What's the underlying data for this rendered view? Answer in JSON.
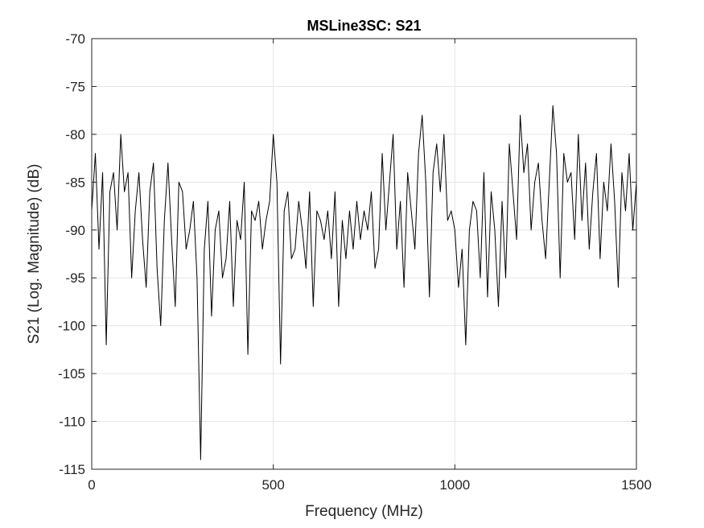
{
  "chart_data": {
    "type": "line",
    "title": "MSLine3SC: S21",
    "xlabel": "Frequency (MHz)",
    "ylabel": "S21 (Log. Magnitude) (dB)",
    "xlim": [
      0,
      1500
    ],
    "ylim": [
      -115,
      -70
    ],
    "xticks": [
      0,
      500,
      1000,
      1500
    ],
    "yticks": [
      -70,
      -75,
      -80,
      -85,
      -90,
      -95,
      -100,
      -105,
      -110,
      -115
    ],
    "grid": true,
    "legend": "none",
    "colors": {
      "line": "#000000",
      "grid": "#e6e6e6",
      "axes": "#262626"
    },
    "series": [
      {
        "x": [
          0,
          10,
          20,
          30,
          40,
          50,
          60,
          70,
          80,
          90,
          100,
          110,
          120,
          130,
          140,
          150,
          160,
          170,
          180,
          190,
          200,
          210,
          220,
          230,
          240,
          250,
          260,
          270,
          280,
          290,
          300,
          310,
          320,
          330,
          340,
          350,
          360,
          370,
          380,
          390,
          400,
          410,
          420,
          430,
          440,
          450,
          460,
          470,
          480,
          490,
          500,
          510,
          520,
          530,
          540,
          550,
          560,
          570,
          580,
          590,
          600,
          610,
          620,
          630,
          640,
          650,
          660,
          670,
          680,
          690,
          700,
          710,
          720,
          730,
          740,
          750,
          760,
          770,
          780,
          790,
          800,
          810,
          820,
          830,
          840,
          850,
          860,
          870,
          880,
          890,
          900,
          910,
          920,
          930,
          940,
          950,
          960,
          970,
          980,
          990,
          1000,
          1010,
          1020,
          1030,
          1040,
          1050,
          1060,
          1070,
          1080,
          1090,
          1100,
          1110,
          1120,
          1130,
          1140,
          1150,
          1160,
          1170,
          1180,
          1190,
          1200,
          1210,
          1220,
          1230,
          1240,
          1250,
          1260,
          1270,
          1280,
          1290,
          1300,
          1310,
          1320,
          1330,
          1340,
          1350,
          1360,
          1370,
          1380,
          1390,
          1400,
          1410,
          1420,
          1430,
          1440,
          1450,
          1460,
          1470,
          1480,
          1490,
          1500
        ],
        "values": [
          -88,
          -82,
          -92,
          -84,
          -102,
          -86,
          -84,
          -90,
          -80,
          -86,
          -84,
          -95,
          -88,
          -84,
          -91,
          -96,
          -86,
          -83,
          -94,
          -100,
          -89,
          -83,
          -91,
          -98,
          -85,
          -86,
          -92,
          -90,
          -87,
          -95,
          -114,
          -92,
          -87,
          -99,
          -90,
          -88,
          -95,
          -93,
          -87,
          -98,
          -89,
          -91,
          -85,
          -103,
          -88,
          -89,
          -87,
          -92,
          -89,
          -87,
          -80,
          -85,
          -104,
          -88,
          -86,
          -93,
          -92,
          -87,
          -90,
          -94,
          -86,
          -98,
          -88,
          -89,
          -91,
          -88,
          -93,
          -86,
          -98,
          -89,
          -93,
          -88,
          -92,
          -87,
          -91,
          -88,
          -90,
          -86,
          -94,
          -92,
          -82,
          -90,
          -85,
          -80,
          -92,
          -87,
          -96,
          -84,
          -88,
          -92,
          -82,
          -78,
          -85,
          -97,
          -84,
          -81,
          -86,
          -80,
          -89,
          -88,
          -90,
          -96,
          -92,
          -102,
          -90,
          -87,
          -88,
          -95,
          -84,
          -97,
          -86,
          -90,
          -98,
          -87,
          -95,
          -81,
          -86,
          -91,
          -78,
          -84,
          -81,
          -90,
          -85,
          -83,
          -89,
          -93,
          -85,
          -77,
          -82,
          -95,
          -82,
          -85,
          -84,
          -91,
          -80,
          -89,
          -83,
          -92,
          -86,
          -82,
          -93,
          -85,
          -88,
          -81,
          -87,
          -96,
          -84,
          -88,
          -82,
          -90,
          -85
        ]
      }
    ]
  }
}
